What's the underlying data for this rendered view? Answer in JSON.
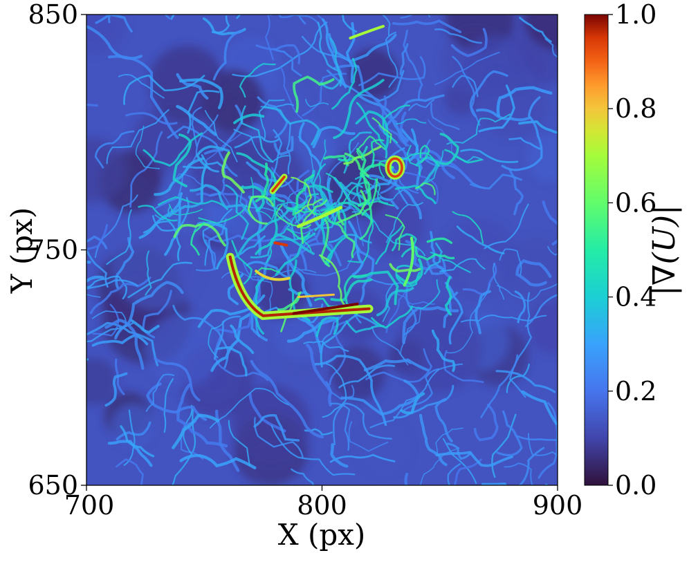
{
  "chart_data": {
    "type": "heatmap",
    "title": "",
    "xlabel": "X (px)",
    "ylabel": "Y (px)",
    "xlim": [
      700,
      900
    ],
    "ylim": [
      650,
      850
    ],
    "x_ticks": [
      700,
      800,
      900
    ],
    "y_ticks": [
      650,
      750,
      850
    ],
    "x_tick_labels": [
      "700",
      "800",
      "900"
    ],
    "y_tick_labels": [
      "650",
      "750",
      "850"
    ],
    "colorbar": {
      "label": "|∇(U)|",
      "range": [
        0.0,
        1.0
      ],
      "ticks": [
        0.0,
        0.2,
        0.4,
        0.6,
        0.8,
        1.0
      ],
      "tick_labels": [
        "0.0",
        "0.2",
        "0.4",
        "0.6",
        "0.8",
        "1.0"
      ],
      "colormap": "turbo"
    },
    "grid": false,
    "description_values": "Magnitude of velocity gradient field; background mostly 0.05-0.25 with turbulent filaments up to ~0.4; strongest features (~0.9-1.0) along an arc near x 760-820, y 720-750, a ring near x 830, y 785, and a streak near x 782, y 780."
  }
}
